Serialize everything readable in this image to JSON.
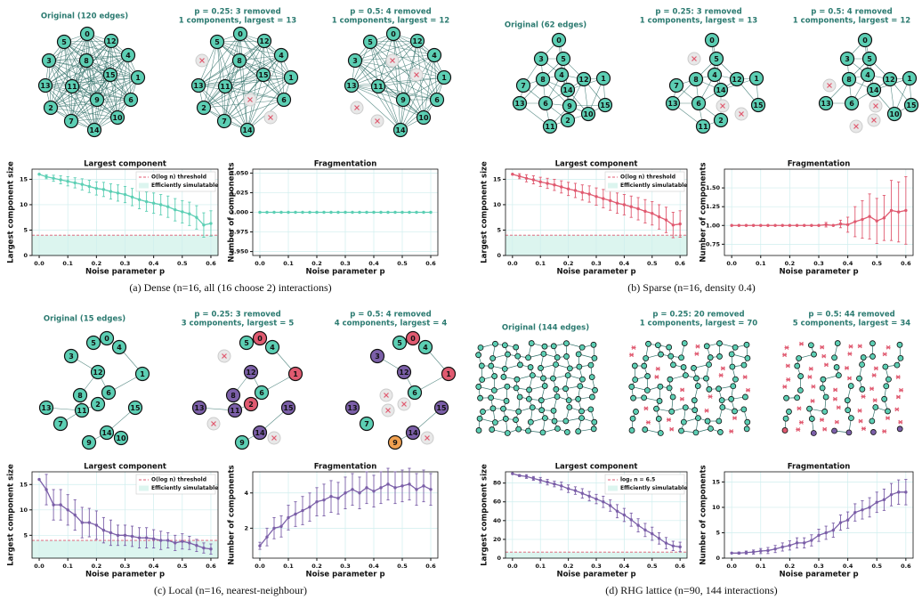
{
  "captions": [
    "(a) Dense (n=16, all (16 choose 2) interactions)",
    "(b) Sparse (n=16, density 0.4)",
    "(c) Local (n=16, nearest-neighbour)",
    "(d) RHG lattice (n=90, 144 interactions)"
  ],
  "graphs": [
    [
      {
        "title": [
          "Original (120 edges)"
        ],
        "nodes": [
          "0",
          "5",
          "12",
          "4",
          "3",
          "8",
          "1",
          "15",
          "13",
          "11",
          "6",
          "2",
          "9",
          "10",
          "7",
          "14"
        ]
      },
      {
        "title": [
          "p = 0.25: 3 removed",
          "1 components, largest = 13"
        ],
        "nodes": [
          "0",
          "5",
          "12",
          "4",
          "8",
          "1",
          "15",
          "13",
          "11",
          "6",
          "2",
          "7",
          "14"
        ]
      },
      {
        "title": [
          "p = 0.5: 4 removed",
          "1 components, largest = 12"
        ],
        "nodes": [
          "0",
          "5",
          "12",
          "4",
          "3",
          "1",
          "13",
          "11",
          "6",
          "9",
          "10",
          "14"
        ]
      }
    ],
    [
      {
        "title": [
          "Original (62 edges)"
        ],
        "nodes": [
          "0",
          "3",
          "5",
          "4",
          "8",
          "12",
          "1",
          "7",
          "14",
          "13",
          "6",
          "9",
          "15",
          "10",
          "2",
          "11"
        ]
      },
      {
        "title": [
          "p = 0.25: 3 removed",
          "1 components, largest = 13"
        ],
        "nodes": [
          "0",
          "5",
          "4",
          "12",
          "1",
          "7",
          "8",
          "14",
          "13",
          "6",
          "15",
          "2",
          "11"
        ]
      },
      {
        "title": [
          "p = 0.5: 4 removed",
          "1 components, largest = 12"
        ],
        "nodes": [
          "0",
          "3",
          "5",
          "4",
          "8",
          "12",
          "1",
          "14",
          "13",
          "6",
          "15",
          "10"
        ]
      }
    ],
    [
      {
        "title": [
          "Original (15 edges)"
        ],
        "nodes": [
          "5",
          "0",
          "4",
          "3",
          "12",
          "1",
          "8",
          "6",
          "13",
          "2",
          "11",
          "15",
          "7",
          "14",
          "10",
          "9"
        ]
      },
      {
        "title": [
          "p = 0.25: 3 removed",
          "3 components, largest = 5"
        ],
        "nodes": [
          "5",
          "0",
          "4",
          "12",
          "1",
          "8",
          "6",
          "13",
          "2",
          "11",
          "15",
          "14",
          "9"
        ]
      },
      {
        "title": [
          "p = 0.5: 4 removed",
          "4 components, largest = 4"
        ],
        "nodes": [
          "5",
          "0",
          "4",
          "3",
          "12",
          "1",
          "6",
          "13",
          "15",
          "9",
          "14",
          "7"
        ]
      }
    ],
    [
      {
        "title": [
          "Original (144 edges)"
        ]
      },
      {
        "title": [
          "p = 0.25: 20 removed",
          "1 components, largest = 70"
        ]
      },
      {
        "title": [
          "p = 0.5: 44 removed",
          "5 components, largest = 34"
        ]
      }
    ]
  ],
  "chart_data": [
    {
      "type": "line",
      "title": "Largest component",
      "xlabel": "Noise parameter p",
      "ylabel": "Largest component size",
      "color": "#5ccfb4",
      "x": [
        0,
        0.025,
        0.05,
        0.075,
        0.1,
        0.125,
        0.15,
        0.175,
        0.2,
        0.225,
        0.25,
        0.275,
        0.3,
        0.325,
        0.35,
        0.375,
        0.4,
        0.425,
        0.45,
        0.475,
        0.5,
        0.525,
        0.55,
        0.575,
        0.6
      ],
      "values": [
        16,
        15.5,
        15.2,
        14.9,
        14.6,
        14.3,
        14.0,
        13.6,
        13.2,
        13.0,
        12.6,
        12.3,
        12.0,
        11.5,
        11.0,
        10.6,
        10.3,
        10.0,
        9.6,
        9.0,
        8.6,
        8.2,
        7.5,
        6.0,
        6.3
      ],
      "errors": [
        0,
        0.4,
        0.6,
        0.8,
        0.9,
        1.0,
        1.1,
        1.2,
        1.3,
        1.4,
        1.5,
        1.6,
        1.6,
        1.7,
        1.8,
        1.9,
        2.0,
        2.0,
        2.1,
        2.2,
        2.2,
        2.3,
        2.3,
        2.4,
        2.5
      ],
      "threshold": {
        "value": 4,
        "label": "O(log n) threshold"
      },
      "region_label": "Efficiently simulatable",
      "xlim": [
        -0.025,
        0.625
      ],
      "xticks": [
        {
          "value": 0,
          "label": "0.0"
        },
        0.1,
        0.2,
        0.3,
        0.4,
        0.5,
        0.6
      ],
      "ylim": [
        0,
        17
      ],
      "yticks": [
        0,
        5,
        10,
        15
      ],
      "grid": true
    },
    {
      "type": "line",
      "title": "Fragmentation",
      "xlabel": "Noise parameter p",
      "ylabel": "Number of components",
      "color": "#5ccfb4",
      "x": [
        0,
        0.025,
        0.05,
        0.075,
        0.1,
        0.125,
        0.15,
        0.175,
        0.2,
        0.225,
        0.25,
        0.275,
        0.3,
        0.325,
        0.35,
        0.375,
        0.4,
        0.425,
        0.45,
        0.475,
        0.5,
        0.525,
        0.55,
        0.575,
        0.6
      ],
      "values": [
        1,
        1,
        1,
        1,
        1,
        1,
        1,
        1,
        1,
        1,
        1,
        1,
        1,
        1,
        1,
        1,
        1,
        1,
        1,
        1,
        1,
        1,
        1,
        1,
        1
      ],
      "errors": [
        0,
        0,
        0,
        0,
        0,
        0,
        0,
        0,
        0,
        0,
        0,
        0,
        0,
        0,
        0,
        0,
        0,
        0,
        0,
        0,
        0,
        0,
        0,
        0,
        0
      ],
      "xlim": [
        -0.025,
        0.625
      ],
      "xticks": [
        {
          "value": 0,
          "label": "0.0"
        },
        0.1,
        0.2,
        0.3,
        0.4,
        0.5,
        0.6
      ],
      "ylim": [
        0.945,
        1.055
      ],
      "yticks": [
        {
          "value": 0.95,
          "label": "0.950"
        },
        0.975,
        {
          "value": 1,
          "label": "1.000"
        },
        1.025,
        {
          "value": 1.05,
          "label": "1.050"
        }
      ],
      "grid": true
    },
    {
      "type": "line",
      "title": "Largest component",
      "xlabel": "Noise parameter p",
      "ylabel": "Largest component size",
      "color": "#e05a70",
      "x": [
        0,
        0.025,
        0.05,
        0.075,
        0.1,
        0.125,
        0.15,
        0.175,
        0.2,
        0.225,
        0.25,
        0.275,
        0.3,
        0.325,
        0.35,
        0.375,
        0.4,
        0.425,
        0.45,
        0.475,
        0.5,
        0.525,
        0.55,
        0.575,
        0.6
      ],
      "values": [
        16,
        15.6,
        15.2,
        14.9,
        14.5,
        14.2,
        13.9,
        13.5,
        13.1,
        12.8,
        12.4,
        12.1,
        11.6,
        11.2,
        10.8,
        10.3,
        10.0,
        9.6,
        9.2,
        8.7,
        8.3,
        7.6,
        7.0,
        6.0,
        6.2
      ],
      "errors": [
        0,
        0.5,
        0.7,
        0.8,
        0.9,
        1.0,
        1.1,
        1.2,
        1.3,
        1.4,
        1.5,
        1.6,
        1.7,
        1.8,
        1.9,
        2.0,
        2.0,
        2.1,
        2.2,
        2.3,
        2.3,
        2.4,
        2.5,
        2.5,
        2.6
      ],
      "threshold": {
        "value": 4,
        "label": "O(log n) threshold"
      },
      "region_label": "Efficiently simulatable",
      "xlim": [
        -0.025,
        0.625
      ],
      "xticks": [
        {
          "value": 0,
          "label": "0.0"
        },
        0.1,
        0.2,
        0.3,
        0.4,
        0.5,
        0.6
      ],
      "ylim": [
        0,
        17
      ],
      "yticks": [
        0,
        5,
        10,
        15
      ],
      "grid": true
    },
    {
      "type": "line",
      "title": "Fragmentation",
      "xlabel": "Noise parameter p",
      "ylabel": "Number of components",
      "color": "#e05a70",
      "x": [
        0,
        0.025,
        0.05,
        0.075,
        0.1,
        0.125,
        0.15,
        0.175,
        0.2,
        0.225,
        0.25,
        0.275,
        0.3,
        0.325,
        0.35,
        0.375,
        0.4,
        0.425,
        0.45,
        0.475,
        0.5,
        0.525,
        0.55,
        0.575,
        0.6
      ],
      "values": [
        1,
        1,
        1,
        1,
        1,
        1,
        1,
        1,
        1,
        1,
        1,
        1,
        1,
        1.01,
        1,
        1.02,
        1.01,
        1.05,
        1.08,
        1.12,
        1.06,
        1.1,
        1.2,
        1.18,
        1.2
      ],
      "errors": [
        0,
        0,
        0,
        0,
        0,
        0,
        0,
        0,
        0,
        0,
        0,
        0,
        0,
        0.03,
        0,
        0.05,
        0.1,
        0.2,
        0.25,
        0.3,
        0.3,
        0.3,
        0.4,
        0.4,
        0.45
      ],
      "xlim": [
        -0.025,
        0.625
      ],
      "xticks": [
        {
          "value": 0,
          "label": "0.0"
        },
        0.1,
        0.2,
        0.3,
        0.4,
        0.5,
        0.6
      ],
      "ylim": [
        0.6,
        1.75
      ],
      "yticks": [
        0.75,
        {
          "value": 1,
          "label": "1.00"
        },
        1.25,
        {
          "value": 1.5,
          "label": "1.50"
        }
      ],
      "grid": true
    },
    {
      "type": "line",
      "title": "Largest component",
      "xlabel": "Noise parameter p",
      "ylabel": "Largest component size",
      "color": "#7b5fa8",
      "x": [
        0,
        0.025,
        0.05,
        0.075,
        0.1,
        0.125,
        0.15,
        0.175,
        0.2,
        0.225,
        0.25,
        0.275,
        0.3,
        0.325,
        0.35,
        0.375,
        0.4,
        0.425,
        0.45,
        0.475,
        0.5,
        0.525,
        0.55,
        0.575,
        0.6
      ],
      "values": [
        16,
        14,
        11,
        11,
        10,
        9,
        7.5,
        7.5,
        7,
        6,
        5.5,
        5,
        5,
        4.8,
        4.5,
        4.5,
        4.3,
        4,
        4,
        3.5,
        3.8,
        3.5,
        3,
        2.5,
        2.3
      ],
      "errors": [
        0,
        3,
        3,
        3,
        3,
        3,
        3,
        2.8,
        2.8,
        2.5,
        2.5,
        2,
        2,
        2,
        2,
        2,
        1.8,
        1.8,
        1.5,
        1.5,
        1.5,
        1.3,
        1.2,
        1,
        1
      ],
      "threshold": {
        "value": 4,
        "label": "O(log n) threshold"
      },
      "region_label": "Efficiently simulatable",
      "xlim": [
        -0.025,
        0.625
      ],
      "xticks": [
        {
          "value": 0,
          "label": "0.0"
        },
        0.1,
        0.2,
        0.3,
        0.4,
        0.5,
        0.6
      ],
      "ylim": [
        0.5,
        17.5
      ],
      "yticks": [
        5,
        10,
        15
      ],
      "grid": true
    },
    {
      "type": "line",
      "title": "Fragmentation",
      "xlabel": "Noise parameter p",
      "ylabel": "Number of components",
      "color": "#7b5fa8",
      "x": [
        0,
        0.025,
        0.05,
        0.075,
        0.1,
        0.125,
        0.15,
        0.175,
        0.2,
        0.225,
        0.25,
        0.275,
        0.3,
        0.325,
        0.35,
        0.375,
        0.4,
        0.425,
        0.45,
        0.475,
        0.5,
        0.525,
        0.55,
        0.575,
        0.6
      ],
      "values": [
        1,
        1.5,
        2,
        2.1,
        2.6,
        2.8,
        3,
        3.2,
        3.5,
        3.6,
        3.8,
        3.7,
        4,
        4.2,
        4,
        4.3,
        4.1,
        4.3,
        4.5,
        4.3,
        4.4,
        4.5,
        4.2,
        4.4,
        4.2
      ],
      "errors": [
        0.2,
        0.5,
        0.6,
        0.6,
        0.7,
        0.7,
        0.8,
        0.8,
        0.8,
        0.9,
        0.9,
        0.9,
        0.9,
        0.9,
        0.9,
        0.9,
        0.9,
        0.9,
        0.9,
        0.9,
        0.9,
        0.9,
        0.9,
        0.9,
        0.9
      ],
      "xlim": [
        -0.025,
        0.625
      ],
      "xticks": [
        {
          "value": 0,
          "label": "0.0"
        },
        0.1,
        0.2,
        0.3,
        0.4,
        0.5,
        0.6
      ],
      "ylim": [
        0.3,
        5.2
      ],
      "yticks": [
        2,
        4
      ],
      "grid": true
    },
    {
      "type": "line",
      "title": "Largest component",
      "xlabel": "Noise parameter p",
      "ylabel": "Largest component size",
      "color": "#7b5fa8",
      "x": [
        0,
        0.025,
        0.05,
        0.075,
        0.1,
        0.125,
        0.15,
        0.175,
        0.2,
        0.225,
        0.25,
        0.275,
        0.3,
        0.325,
        0.35,
        0.375,
        0.4,
        0.425,
        0.45,
        0.475,
        0.5,
        0.525,
        0.55,
        0.575,
        0.6
      ],
      "values": [
        90,
        88,
        87,
        85,
        83,
        81,
        79,
        77,
        74,
        72,
        69,
        66,
        63,
        60,
        56,
        50,
        46,
        41,
        35,
        30,
        26,
        21,
        16,
        13,
        12
      ],
      "errors": [
        0,
        1,
        2,
        2,
        3,
        3,
        3,
        4,
        4,
        4,
        5,
        5,
        5,
        6,
        6,
        7,
        7,
        7,
        7,
        7,
        7,
        6,
        6,
        5,
        5
      ],
      "threshold": {
        "value": 6.5,
        "label": "log₂ n = 6.5"
      },
      "region_label": "Efficiently simulatable",
      "xlim": [
        -0.025,
        0.625
      ],
      "xticks": [
        {
          "value": 0,
          "label": "0.0"
        },
        0.1,
        0.2,
        0.3,
        0.4,
        0.5,
        0.6
      ],
      "ylim": [
        0,
        92
      ],
      "yticks": [
        0,
        20,
        40,
        60,
        80
      ],
      "grid": true
    },
    {
      "type": "line",
      "title": "Fragmentation",
      "xlabel": "Noise parameter p",
      "ylabel": "Number of components",
      "color": "#7b5fa8",
      "x": [
        0,
        0.025,
        0.05,
        0.075,
        0.1,
        0.125,
        0.15,
        0.175,
        0.2,
        0.225,
        0.25,
        0.275,
        0.3,
        0.325,
        0.35,
        0.375,
        0.4,
        0.425,
        0.45,
        0.475,
        0.5,
        0.525,
        0.55,
        0.575,
        0.6
      ],
      "values": [
        1,
        1,
        1.1,
        1.2,
        1.4,
        1.5,
        1.8,
        2.2,
        2.5,
        3,
        3,
        3.5,
        4.5,
        5,
        5.5,
        7,
        7.5,
        9,
        9.5,
        10,
        11,
        11.5,
        12.5,
        13,
        13
      ],
      "errors": [
        0,
        0.2,
        0.3,
        0.4,
        0.5,
        0.6,
        0.7,
        0.8,
        0.9,
        1,
        1,
        1.1,
        1.2,
        1.3,
        1.4,
        1.5,
        1.6,
        1.7,
        1.8,
        1.9,
        2,
        2.1,
        2.2,
        2.4,
        2.5
      ],
      "xlim": [
        -0.025,
        0.625
      ],
      "xticks": [
        {
          "value": 0,
          "label": "0.0"
        },
        0.1,
        0.2,
        0.3,
        0.4,
        0.5,
        0.6
      ],
      "ylim": [
        0,
        17
      ],
      "yticks": [
        0,
        5,
        10,
        15
      ],
      "grid": true
    }
  ]
}
